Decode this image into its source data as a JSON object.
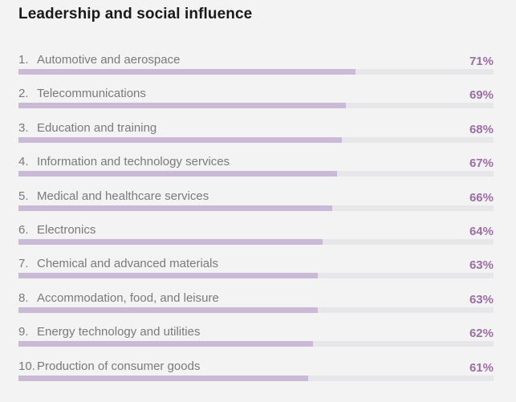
{
  "colors": {
    "bar_fill": "#cbb9d8",
    "bar_track": "#e7e7ea",
    "percent": "#9b6ea6",
    "label": "#7a7a7a",
    "title": "#1a1a1a"
  },
  "chart_data": {
    "type": "bar",
    "orientation": "horizontal",
    "title": "Leadership and social influence",
    "categories": [
      "Automotive and aerospace",
      "Telecommunications",
      "Education and training",
      "Information and technology services",
      "Medical and healthcare services",
      "Electronics",
      "Chemical and advanced materials",
      "Accommodation, food, and leisure",
      "Energy technology and utilities",
      "Production of consumer goods"
    ],
    "ranks": [
      "1.",
      "2.",
      "3.",
      "4.",
      "5.",
      "6.",
      "7.",
      "8.",
      "9.",
      "10."
    ],
    "values": [
      71,
      69,
      68,
      67,
      66,
      64,
      63,
      63,
      62,
      61
    ],
    "value_labels": [
      "71%",
      "69%",
      "68%",
      "67%",
      "66%",
      "64%",
      "63%",
      "63%",
      "62%",
      "61%"
    ],
    "xlim": [
      0,
      100
    ],
    "grid": false,
    "legend": "none"
  }
}
